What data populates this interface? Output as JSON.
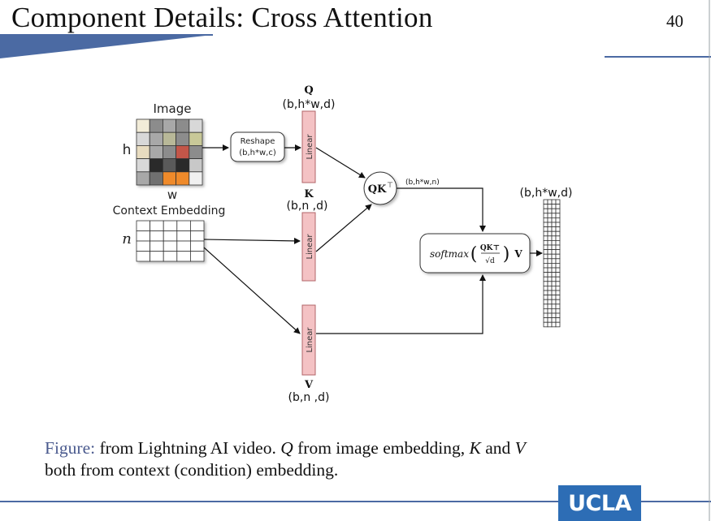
{
  "slide": {
    "title": "Component Details: Cross Attention",
    "page_number": "40",
    "logo_text": "UCLA"
  },
  "diagram": {
    "image_label": "Image",
    "h_label": "h",
    "w_label": "w",
    "reshape_label": "Reshape",
    "reshape_shape": "(b,h*w,c)",
    "context_label": "Context Embedding",
    "n_label": "n",
    "q_label": "Q",
    "q_shape": "(b,h*w,d)",
    "k_label": "K",
    "k_shape": "(b,n ,d)",
    "v_label": "V",
    "v_shape": "(b,n ,d)",
    "linear_label": "Linear",
    "qk_label": "QK",
    "qk_sup": "⊤",
    "qk_shape": "(b,h*w,n)",
    "softmax_label": "softmax",
    "softmax_num": "QK⊤",
    "softmax_den": "√d",
    "softmax_v": "V",
    "output_shape": "(b,h*w,d)",
    "colors": {
      "linear_fill": "#f4c2c4",
      "linear_stroke": "#b26468",
      "grid_orange": "#ef8a2a",
      "grid_red": "#c3564a"
    }
  },
  "caption": {
    "label": "Figure:",
    "text_1": " from Lightning AI video. ",
    "q": "Q",
    "text_2": " from image embedding, ",
    "k": "K",
    "text_3": " and ",
    "v": "V",
    "text_4": "both from context (condition) embedding."
  }
}
